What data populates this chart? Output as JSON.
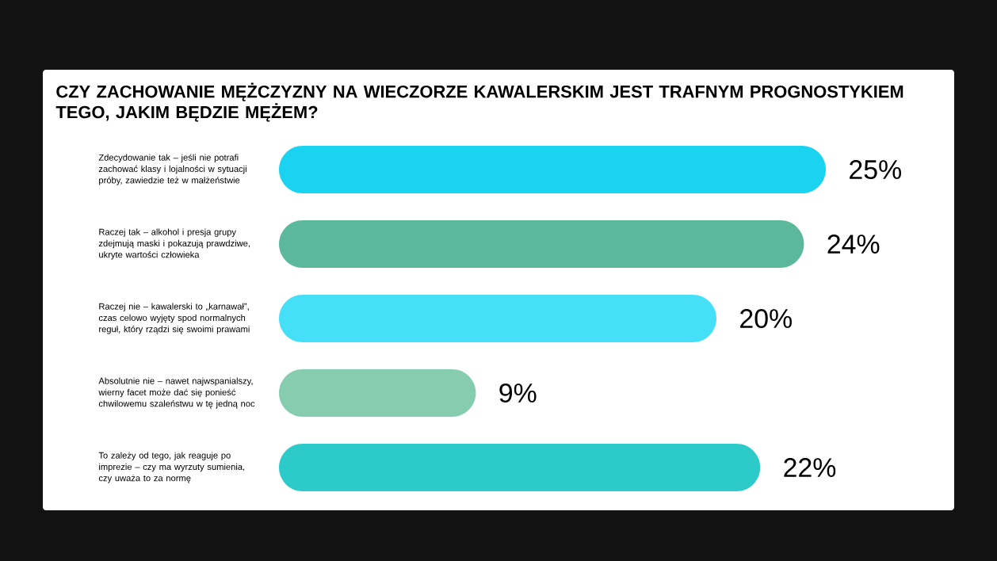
{
  "chart_data": {
    "type": "bar",
    "orientation": "horizontal",
    "title": "CZY ZACHOWANIE MĘŻCZYZNY NA WIECZORZE KAWALERSKIM JEST TRAFNYM PROGNOSTYKIEM TEGO, JAKIM BĘDZIE MĘŻEM?",
    "categories": [
      "Zdecydowanie tak – jeśli nie potrafi zachować klasy i lojalności w sytuacji próby, zawiedzie też w małżeństwie",
      "Raczej tak – alkohol i presja grupy zdejmują maski i pokazują prawdziwe, ukryte wartości człowieka",
      "Raczej nie – kawalerski to „karnawał”, czas celowo wyjęty spod normalnych reguł, który rządzi się swoimi prawami",
      "Absolutnie nie – nawet najwspanialszy, wierny facet może dać się ponieść chwilowemu szaleństwu w tę jedną noc",
      "To zależy od tego, jak reaguje po imprezie – czy ma wyrzuty sumienia, czy uważa to za normę"
    ],
    "values": [
      25,
      24,
      20,
      9,
      22
    ],
    "value_labels": [
      "25%",
      "24%",
      "20%",
      "9%",
      "22%"
    ],
    "colors": [
      "#1ad3f0",
      "#5bb89a",
      "#45e0f8",
      "#86cdb0",
      "#2ccbc9"
    ]
  }
}
